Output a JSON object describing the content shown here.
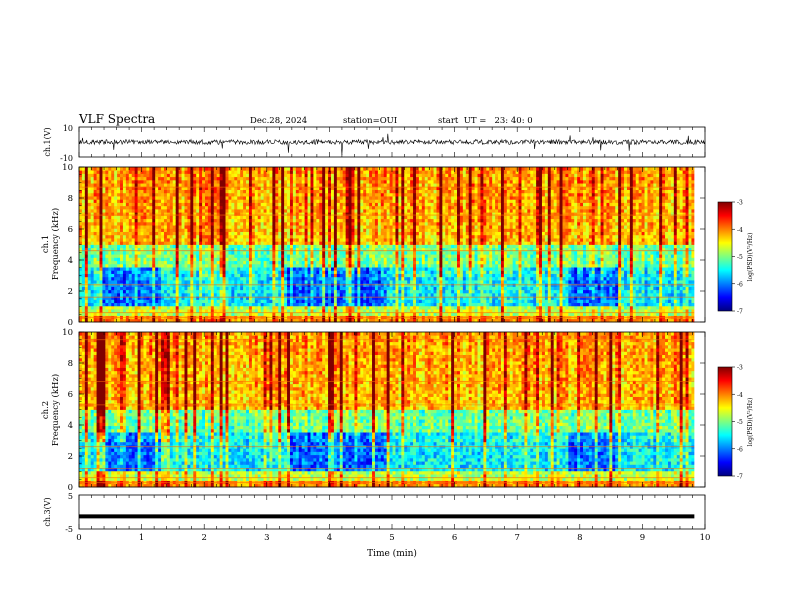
{
  "header": {
    "title": "VLF Spectra",
    "date": "Dec.28, 2024",
    "station": "station=OUI",
    "start": "start  UT =   23: 40: 0"
  },
  "chart_data": [
    {
      "type": "line",
      "panel": "waveform-ch1",
      "ylabel": "ch.1(V)",
      "ylim": [
        -10,
        10
      ],
      "y_ticklabels": [
        "10",
        "-10"
      ],
      "xlim": [
        0,
        10
      ],
      "trace_color": "#000000"
    },
    {
      "type": "heatmap",
      "panel": "spectrogram-ch1",
      "ylabel": "ch.1\nFrequency (kHz)",
      "ylim": [
        0,
        10
      ],
      "y_ticklabels": [
        "0",
        "2",
        "4",
        "6",
        "8",
        "10"
      ],
      "xlim": [
        0,
        9.83
      ],
      "colorbar": {
        "label": "log(PSD)(V²/Hz)",
        "range": [
          -7,
          -3
        ],
        "ticks": [
          "-3",
          "-4",
          "-5",
          "-6",
          "-7"
        ]
      }
    },
    {
      "type": "heatmap",
      "panel": "spectrogram-ch2",
      "ylabel": "ch.2\nFrequency (kHz)",
      "ylim": [
        0,
        10
      ],
      "y_ticklabels": [
        "0",
        "2",
        "4",
        "6",
        "8",
        "10"
      ],
      "xlim": [
        0,
        9.83
      ],
      "colorbar": {
        "label": "log(PSD)(V²/Hz)",
        "range": [
          -7,
          -3
        ],
        "ticks": [
          "-3",
          "-4",
          "-5",
          "-6",
          "-7"
        ]
      }
    },
    {
      "type": "line",
      "panel": "waveform-ch3",
      "ylabel": "ch.3(V)",
      "ylim": [
        -5,
        5
      ],
      "y_ticklabels": [
        "5",
        "-5"
      ],
      "xlim": [
        0,
        10
      ],
      "x": [
        0,
        9.83
      ],
      "values": [
        -1.3,
        -1.3
      ],
      "xlabel": "Time (min)",
      "x_ticklabels": [
        "0",
        "1",
        "2",
        "3",
        "4",
        "5",
        "6",
        "7",
        "8",
        "9",
        "10"
      ]
    }
  ],
  "colors": {
    "colormap": [
      "#00007f",
      "#0000ff",
      "#007fff",
      "#00ffff",
      "#7fff7f",
      "#ffff00",
      "#ff7f00",
      "#ff0000",
      "#7f0000"
    ]
  }
}
